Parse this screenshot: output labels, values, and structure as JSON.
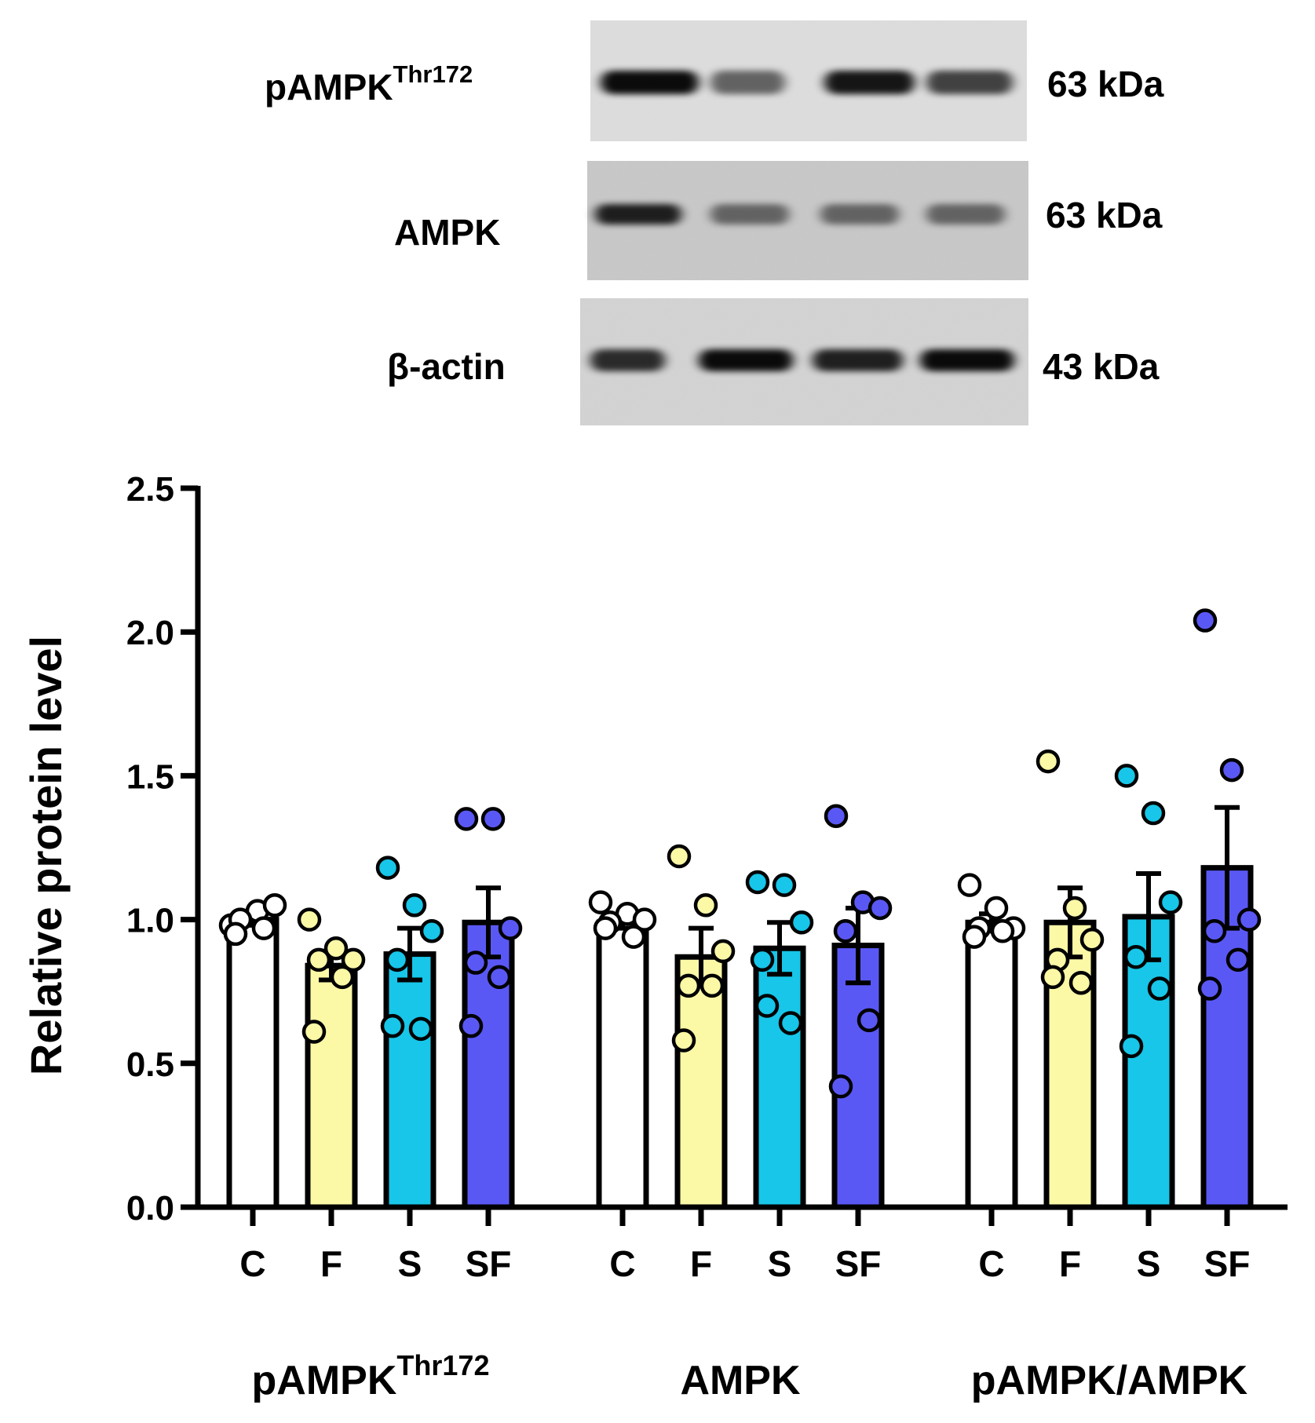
{
  "blot": {
    "rows": [
      {
        "protein": "pAMPK",
        "superscript": "Thr172",
        "mw": "63 kDa",
        "lanes": [
          0.95,
          0.55,
          0.9,
          0.7
        ]
      },
      {
        "protein": "AMPK",
        "superscript": "",
        "mw": "63 kDa",
        "lanes": [
          0.85,
          0.5,
          0.5,
          0.5
        ]
      },
      {
        "protein": "β-actin",
        "superscript": "",
        "mw": "43 kDa",
        "lanes": [
          0.8,
          0.95,
          0.85,
          0.95
        ]
      }
    ]
  },
  "chart_data": {
    "type": "bar",
    "ylabel": "Relative protein level",
    "ylim": [
      0,
      2.5
    ],
    "yticks": [
      "0.0",
      "0.5",
      "1.0",
      "1.5",
      "2.0",
      "2.5"
    ],
    "group_labels": [
      {
        "text": "pAMPK",
        "superscript": "Thr172"
      },
      {
        "text": "AMPK",
        "superscript": ""
      },
      {
        "text": "pAMPK/AMPK",
        "superscript": ""
      }
    ],
    "colors": {
      "C": "#ffffff",
      "F": "#fbf8a6",
      "S": "#17c6e8",
      "SF": "#5a58f4"
    },
    "groups": [
      {
        "name": "pAMPKThr172",
        "bars": [
          {
            "label": "C",
            "mean": 1.0,
            "sem": 0.02,
            "points": [
              0.98,
              1.03,
              1.05,
              1.0,
              0.97,
              0.95
            ]
          },
          {
            "label": "F",
            "mean": 0.84,
            "sem": 0.05,
            "points": [
              1.0,
              0.9,
              0.86,
              0.86,
              0.8,
              0.61
            ]
          },
          {
            "label": "S",
            "mean": 0.88,
            "sem": 0.09,
            "points": [
              1.18,
              1.05,
              0.96,
              0.86,
              0.62,
              0.63
            ]
          },
          {
            "label": "SF",
            "mean": 0.99,
            "sem": 0.12,
            "points": [
              1.35,
              1.35,
              0.97,
              0.85,
              0.8,
              0.63
            ]
          }
        ]
      },
      {
        "name": "AMPK",
        "bars": [
          {
            "label": "C",
            "mean": 0.99,
            "sem": 0.02,
            "points": [
              1.06,
              1.02,
              1.0,
              0.99,
              0.94,
              0.97
            ]
          },
          {
            "label": "F",
            "mean": 0.87,
            "sem": 0.1,
            "points": [
              1.22,
              1.05,
              0.89,
              0.77,
              0.77,
              0.58
            ]
          },
          {
            "label": "S",
            "mean": 0.9,
            "sem": 0.09,
            "points": [
              1.13,
              1.12,
              0.99,
              0.7,
              0.64,
              0.86
            ]
          },
          {
            "label": "SF",
            "mean": 0.91,
            "sem": 0.13,
            "points": [
              1.36,
              1.06,
              1.04,
              0.96,
              0.65,
              0.42
            ]
          }
        ]
      },
      {
        "name": "pAMPK/AMPK",
        "bars": [
          {
            "label": "C",
            "mean": 0.99,
            "sem": 0.03,
            "points": [
              1.12,
              1.04,
              0.97,
              0.97,
              0.96,
              0.94
            ]
          },
          {
            "label": "F",
            "mean": 0.99,
            "sem": 0.12,
            "points": [
              1.55,
              1.04,
              0.93,
              0.86,
              0.78,
              0.8
            ]
          },
          {
            "label": "S",
            "mean": 1.01,
            "sem": 0.15,
            "points": [
              1.5,
              1.37,
              1.06,
              0.87,
              0.76,
              0.56
            ]
          },
          {
            "label": "SF",
            "mean": 1.18,
            "sem": 0.21,
            "points": [
              2.04,
              1.52,
              1.0,
              0.96,
              0.86,
              0.76
            ]
          }
        ]
      }
    ]
  }
}
